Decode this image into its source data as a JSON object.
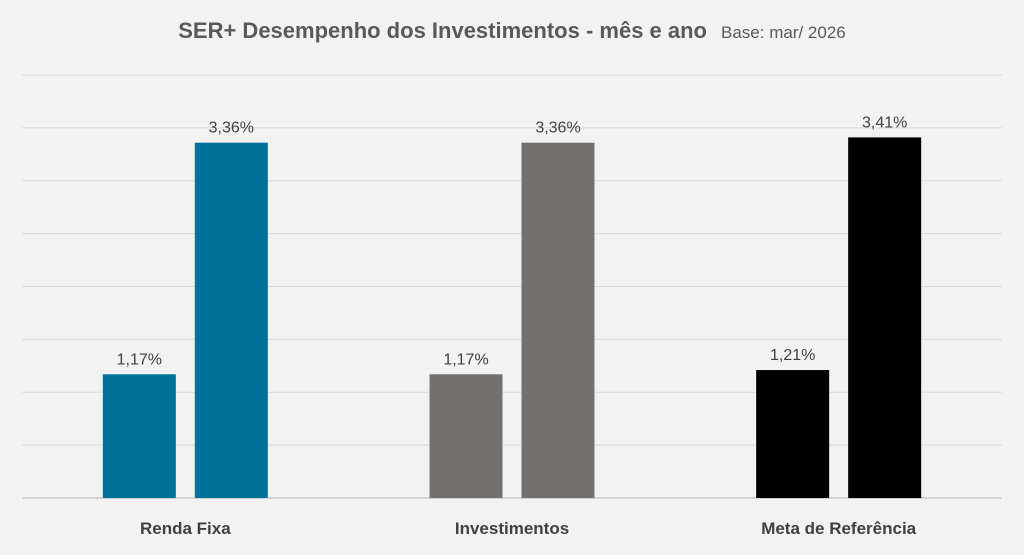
{
  "title": "SER+  Desempenho dos Investimentos - mês e ano",
  "subtitle": "Base: mar/ 2026",
  "chart_data": {
    "type": "bar",
    "categories": [
      "Renda Fixa",
      "Investimentos",
      "Meta de Referência"
    ],
    "series": [
      {
        "values": [
          1.17,
          1.17,
          1.21
        ],
        "labels": [
          "1,17%",
          "1,17%",
          "1,21%"
        ]
      },
      {
        "values": [
          3.36,
          3.36,
          3.41
        ],
        "labels": [
          "3,36%",
          "3,36%",
          "3,41%"
        ]
      }
    ],
    "bar_colors": [
      [
        "#00729a",
        "#00729a"
      ],
      [
        "#737070",
        "#737070"
      ],
      [
        "#000000",
        "#000000"
      ]
    ],
    "ylim": [
      0,
      4
    ],
    "y_axis_visible": false,
    "grid": true,
    "legend": "none"
  }
}
